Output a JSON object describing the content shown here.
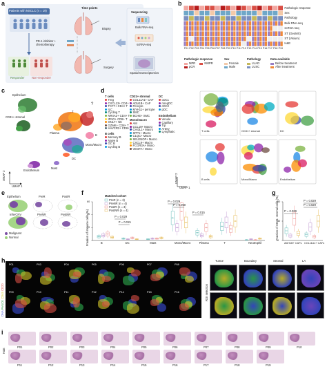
{
  "panels": {
    "a": "a",
    "b": "b",
    "c": "c",
    "d": "d",
    "e": "e",
    "f": "f",
    "g": "g",
    "h": "h",
    "i": "i"
  },
  "panel_a": {
    "patients": "Patients with NSCLC (n = 19)",
    "time_points": "Time points",
    "biopsy": "Biopsy",
    "treatment": "PD-1 inhibitor + chemotherapy",
    "surgery": "Surgery",
    "responder": "Responder",
    "non_responder": "Non-responder",
    "sequencing": "Sequencing",
    "bulk": "Bulk RNA-seq",
    "sc": "scRNA-seq",
    "spatial": "Spatial transcriptomics"
  },
  "panel_b": {
    "row_labels": [
      "Pathologic response",
      "Sex",
      "Pathology",
      "Bulk RNA-seq",
      "scRNA-seq",
      "ST (GeoMX)",
      "ST (Visium)",
      "H&E"
    ],
    "patients": [
      "P01",
      "P02",
      "P03",
      "P04",
      "P05",
      "P06",
      "P07",
      "P08",
      "P09",
      "P10",
      "P11",
      "P12",
      "P13",
      "P14",
      "P15",
      "P16",
      "P17",
      "P18",
      "P19"
    ],
    "legend_titles": {
      "response": "Pathologic response",
      "sex": "Sex",
      "pathology": "Pathology",
      "data": "Data available"
    },
    "legend_items": {
      "mpr": "MPR",
      "nmpr": "NMPR",
      "pcr": "pCR",
      "female": "Female",
      "male": "Male",
      "luad": "LUAD",
      "lusc": "LUSC",
      "before": "Before treatment",
      "after": "After treatment"
    },
    "colors": {
      "mpr": "#f2a7a1",
      "nmpr": "#d94f45",
      "pcr": "#b71c1c",
      "female": "#f3c9a8",
      "male": "#6fa7c8",
      "luad": "#c5b85a",
      "lusc": "#7a8fbf",
      "before": "#9a7fc4",
      "after": "#f08a3a"
    }
  },
  "panel_c": {
    "clusters": [
      "Epithelium",
      "CD31+ stromal",
      "Plasma",
      "T",
      "B",
      "Mono/Macro",
      "Mast",
      "Endothelium",
      "DC"
    ],
    "question": "?",
    "xaxis": "UMAP 1",
    "yaxis": "UMAP 2"
  },
  "panel_d": {
    "groups": {
      "t_cells": "T cells",
      "cd31": "CD31+ stromal",
      "dc": "DC",
      "b_cells": "B cells",
      "mono": "Mono/macro",
      "endothelium": "Endothelium"
    },
    "t_items": [
      "Treg",
      "CXCL13+ CD4+ T",
      "TCF7+ CD4+ T",
      "ILC",
      "Cycling T",
      "NR4A2+ CD4+ T",
      "IFNG+ CD8+ T",
      "GNLY+ NK",
      "GZMK+ CD8+ T",
      "HAVCR2+ CD8+ T"
    ],
    "cd31_items": [
      "COL11A1+ CAF",
      "ADH1B+ CAF",
      "Pericyte",
      "MYH11+ pericyte",
      "SMC",
      "BCHE+ SMC"
    ],
    "dc_items": [
      "cDC1",
      "mregDC",
      "cDC2",
      "pDC"
    ],
    "b_items": [
      "Memory B",
      "Naive B",
      "GC B",
      "Cycling B"
    ],
    "mono_items": [
      "AM",
      "CCL18+ Macro",
      "CHI3L1+ Macro",
      "SPP1+ Macro",
      "C1QC+ Macro",
      "SELENOP+ Macro",
      "CXCL9+ Macro",
      "FCGR3A+ Mono",
      "VEGFA+ Mono"
    ],
    "endo_items": [
      "Venule",
      "Capillary",
      "Tip",
      "Artery",
      "Lymphatic"
    ],
    "umap_titles": [
      "T cells",
      "CD31+ stromal",
      "DC",
      "B cells",
      "Mono/Macro",
      "Endothelium"
    ],
    "xaxis": "UMAP 1",
    "yaxis": "UMAP 2"
  },
  "panel_e": {
    "titles": [
      "Epithelium",
      "PreR",
      "PostR",
      "InferCNV",
      "PreNR",
      "PostNR"
    ],
    "legend": [
      "Malignant",
      "Normal"
    ],
    "colors": {
      "malignant": "#7a4ea3",
      "normal": "#9bd17a"
    }
  },
  "panel_f": {
    "legend_title": "Matched cohort",
    "legend": [
      "PreR (n = 3)",
      "PreNR (n = 4)",
      "PostR (n = 3)",
      "PostNR (n = 4)"
    ],
    "colors": [
      "#7fc6c4",
      "#c7a3d6",
      "#f0a3a0",
      "#e8c26a"
    ],
    "ylabel": "Fraction of immune cells (%)",
    "categories": [
      "B",
      "DC",
      "Mast",
      "Mono/Macro",
      "Plasma",
      "T",
      "Neutrophil"
    ],
    "pvalues": [
      "P = 0.029",
      "P = 0.015",
      "P = 0.029",
      "P = 0.050",
      "P = 0.015"
    ]
  },
  "panel_g": {
    "ylabel": "Fraction of CD31- stromal cells (%)",
    "categories": [
      "ADH1B+ CAFs",
      "COL11A1+ CAFs"
    ],
    "pvalues": [
      "P = 0.029",
      "P = 0.029",
      "P = 0.029"
    ]
  },
  "panel_h": {
    "ylabels": [
      "DNA",
      "PANCK",
      "CD45",
      "CD20"
    ],
    "row1": [
      "P01",
      "P03",
      "P04",
      "P05",
      "P06",
      "P07",
      "P08"
    ],
    "row2": [
      "P09",
      "P10",
      "P11",
      "P12",
      "P14",
      "P15",
      "P16"
    ],
    "roi_titles": [
      "Tumor",
      "Boundary",
      "Stromal",
      "LA"
    ],
    "roi_label": "ROI selection"
  },
  "panel_i": {
    "ylabel": "H&E",
    "row1": [
      "P01",
      "P02",
      "P03",
      "P04",
      "P05",
      "P06",
      "P07",
      "P08",
      "P09",
      "P10"
    ],
    "row2": [
      "P11",
      "P12",
      "P13",
      "P14",
      "P15",
      "P16",
      "P17",
      "P18",
      "P19"
    ]
  },
  "chart_data": [
    {
      "type": "box",
      "panel": "f",
      "categories": [
        "B",
        "DC",
        "Mast",
        "Mono/Macro",
        "Plasma",
        "T",
        "Neutrophil"
      ],
      "ylabel": "Fraction of immune cells (%)",
      "ylim": [
        0,
        60
      ],
      "series": [
        {
          "name": "PreR (n = 3)",
          "values": [
            6,
            3,
            2,
            35,
            12,
            22,
            1
          ]
        },
        {
          "name": "PreNR (n = 4)",
          "values": [
            8,
            2,
            3,
            20,
            8,
            28,
            2
          ]
        },
        {
          "name": "PostR (n = 3)",
          "values": [
            10,
            4,
            3,
            45,
            20,
            18,
            1
          ]
        },
        {
          "name": "PostNR (n = 4)",
          "values": [
            5,
            2,
            4,
            28,
            6,
            30,
            3
          ]
        }
      ]
    },
    {
      "type": "box",
      "panel": "g",
      "categories": [
        "ADH1B+ CAFs",
        "COL11A1+ CAFs"
      ],
      "ylabel": "Fraction of CD31- stromal cells (%)",
      "ylim": [
        0,
        80
      ],
      "series": [
        {
          "name": "PreR (n = 3)",
          "values": [
            20,
            12
          ]
        },
        {
          "name": "PreNR (n = 4)",
          "values": [
            10,
            28
          ]
        },
        {
          "name": "PostR (n = 3)",
          "values": [
            45,
            8
          ]
        },
        {
          "name": "PostNR (n = 4)",
          "values": [
            15,
            40
          ]
        }
      ]
    }
  ]
}
